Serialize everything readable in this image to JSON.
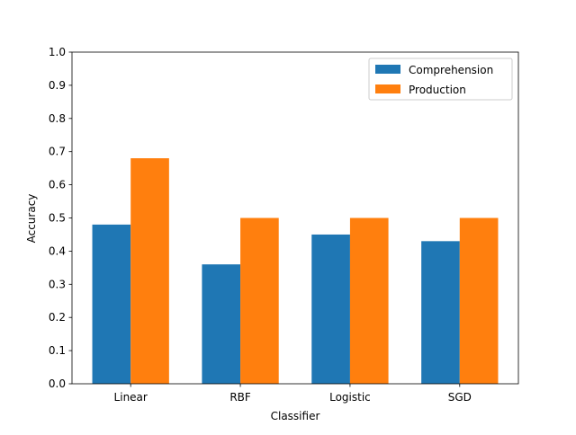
{
  "chart_data": {
    "type": "bar",
    "title": "",
    "xlabel": "Classifier",
    "ylabel": "Accuracy",
    "categories": [
      "Linear",
      "RBF",
      "Logistic",
      "SGD"
    ],
    "series": [
      {
        "name": "Comprehension",
        "values": [
          0.48,
          0.36,
          0.45,
          0.43
        ],
        "color": "#1f77b4"
      },
      {
        "name": "Production",
        "values": [
          0.68,
          0.5,
          0.5,
          0.5
        ],
        "color": "#ff7f0e"
      }
    ],
    "ylim": [
      0,
      1.0
    ],
    "yticks": [
      "0.0",
      "0.1",
      "0.2",
      "0.3",
      "0.4",
      "0.5",
      "0.6",
      "0.7",
      "0.8",
      "0.9",
      "1.0"
    ],
    "grid": false,
    "legend_position": "top-right"
  }
}
